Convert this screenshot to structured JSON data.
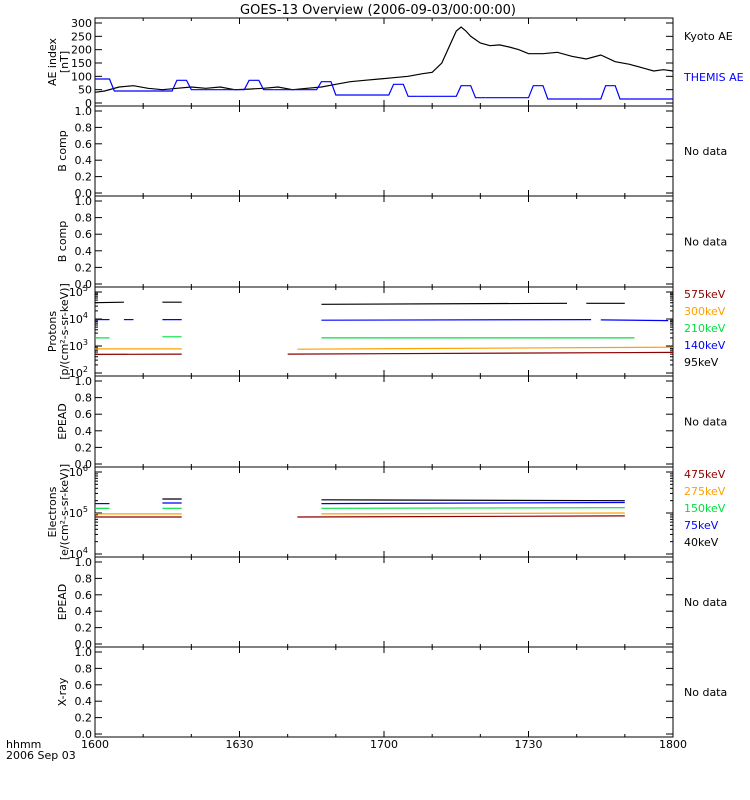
{
  "title": "GOES-13 Overview (2006-09-03/00:00:00)",
  "time_axis": {
    "corner_label_1": "hhmm",
    "corner_label_2": "2006 Sep 03",
    "ticks": [
      "1600",
      "1630",
      "1700",
      "1730",
      "1800"
    ],
    "tick_minutes": [
      0,
      30,
      60,
      90,
      120
    ]
  },
  "colors": {
    "black": "#000000",
    "blue": "#0000ff",
    "green": "#00e040",
    "orange": "#ffa000",
    "darkred": "#8b0000"
  },
  "chart_data": [
    {
      "type": "line",
      "panel": "ae",
      "ylabel_lines": [
        "AE index",
        "[nT]"
      ],
      "ylim": [
        0,
        300
      ],
      "yticks": [
        "0",
        "50",
        "100",
        "150",
        "200",
        "250",
        "300"
      ],
      "ytick_values": [
        0,
        50,
        100,
        150,
        200,
        250,
        300
      ],
      "x_unit": "minutes after 1600 UT",
      "series": [
        {
          "name": "Kyoto AE",
          "color": "#000000",
          "x": [
            0,
            2,
            5,
            8,
            11,
            14,
            17,
            20,
            23,
            26,
            29,
            32,
            35,
            38,
            41,
            44,
            47,
            50,
            53,
            56,
            59,
            62,
            65,
            68,
            70,
            72,
            74,
            75,
            76,
            77,
            78,
            80,
            82,
            84,
            86,
            88,
            90,
            93,
            96,
            99,
            102,
            105,
            108,
            111,
            114,
            116,
            118,
            120
          ],
          "y": [
            40,
            45,
            60,
            65,
            55,
            50,
            55,
            60,
            55,
            60,
            50,
            52,
            55,
            60,
            50,
            55,
            60,
            70,
            80,
            85,
            90,
            95,
            100,
            110,
            115,
            150,
            230,
            270,
            285,
            270,
            250,
            225,
            215,
            218,
            210,
            200,
            185,
            185,
            190,
            175,
            165,
            180,
            155,
            145,
            130,
            120,
            125,
            120
          ]
        },
        {
          "name": "THEMIS AE",
          "color": "#0000ff",
          "segments": [
            {
              "x": [
                0,
                3,
                4,
                7,
                8
              ],
              "y": [
                90,
                90,
                45,
                45,
                45
              ]
            },
            {
              "x": [
                8,
                16,
                17,
                19,
                20,
                22
              ],
              "y": [
                45,
                45,
                85,
                85,
                50,
                50
              ]
            },
            {
              "x": [
                22,
                31,
                32,
                34,
                35,
                37
              ],
              "y": [
                50,
                50,
                85,
                85,
                50,
                50
              ]
            },
            {
              "x": [
                37,
                46,
                47,
                49,
                50,
                52
              ],
              "y": [
                50,
                50,
                80,
                80,
                30,
                30
              ]
            },
            {
              "x": [
                52,
                61,
                62,
                64,
                65,
                67
              ],
              "y": [
                30,
                30,
                70,
                70,
                25,
                25
              ]
            },
            {
              "x": [
                67,
                75,
                76,
                78,
                79,
                81
              ],
              "y": [
                25,
                25,
                65,
                65,
                20,
                20
              ]
            },
            {
              "x": [
                81,
                90,
                91,
                93,
                94,
                96
              ],
              "y": [
                20,
                20,
                65,
                65,
                15,
                15
              ]
            },
            {
              "x": [
                96,
                105,
                106,
                108,
                109,
                112
              ],
              "y": [
                15,
                15,
                65,
                65,
                15,
                15
              ]
            },
            {
              "x": [
                112,
                120
              ],
              "y": [
                15,
                15
              ]
            }
          ]
        }
      ],
      "right_labels": [
        {
          "text": "Kyoto AE",
          "color": "#000000"
        },
        {
          "text": "THEMIS AE",
          "color": "#0000ff"
        }
      ]
    },
    {
      "type": "line",
      "panel": "empty",
      "ylabel_lines": [
        "B comp"
      ],
      "ylim": [
        0,
        1
      ],
      "yticks": [
        "0.0",
        "0.2",
        "0.4",
        "0.6",
        "0.8",
        "1.0"
      ],
      "ytick_values": [
        0,
        0.2,
        0.4,
        0.6,
        0.8,
        1.0
      ],
      "right_labels": [
        {
          "text": "No data",
          "color": "#000000"
        }
      ]
    },
    {
      "type": "line",
      "panel": "empty",
      "ylabel_lines": [
        "B comp"
      ],
      "ylim": [
        0,
        1
      ],
      "yticks": [
        "0.0",
        "0.2",
        "0.4",
        "0.6",
        "0.8",
        "1.0"
      ],
      "ytick_values": [
        0,
        0.2,
        0.4,
        0.6,
        0.8,
        1.0
      ],
      "right_labels": [
        {
          "text": "No data",
          "color": "#000000"
        }
      ]
    },
    {
      "type": "line",
      "panel": "log",
      "ylabel_lines": [
        "Protons",
        "[p/(cm²-s-sr-keV)]"
      ],
      "log_range": [
        2,
        5
      ],
      "yticks": [
        {
          "base": "10",
          "exp": "2",
          "value": 2
        },
        {
          "base": "10",
          "exp": "3",
          "value": 3
        },
        {
          "base": "10",
          "exp": "4",
          "value": 4
        },
        {
          "base": "10",
          "exp": "5",
          "value": 5
        }
      ],
      "series": [
        {
          "name": "575keV",
          "color": "#8b0000",
          "segments": [
            {
              "x": [
                0,
                18
              ],
              "y": [
                490,
                500
              ]
            },
            {
              "x": [
                40,
                120
              ],
              "y": [
                500,
                580
              ]
            }
          ]
        },
        {
          "name": "300keV",
          "color": "#ffa000",
          "segments": [
            {
              "x": [
                0,
                18
              ],
              "y": [
                780,
                780
              ]
            },
            {
              "x": [
                42,
                120
              ],
              "y": [
                760,
                900
              ]
            }
          ]
        },
        {
          "name": "210keV",
          "color": "#00e040",
          "segments": [
            {
              "x": [
                0,
                3
              ],
              "y": [
                2000,
                2000
              ]
            },
            {
              "x": [
                14,
                18
              ],
              "y": [
                2200,
                2200
              ]
            },
            {
              "x": [
                47,
                112
              ],
              "y": [
                2000,
                2000
              ]
            }
          ]
        },
        {
          "name": "140keV",
          "color": "#0000ff",
          "segments": [
            {
              "x": [
                0,
                3
              ],
              "y": [
                9500,
                9500
              ]
            },
            {
              "x": [
                6,
                8
              ],
              "y": [
                9500,
                9500
              ]
            },
            {
              "x": [
                14,
                18
              ],
              "y": [
                9500,
                9500
              ]
            },
            {
              "x": [
                47,
                103
              ],
              "y": [
                9000,
                9500
              ]
            },
            {
              "x": [
                105,
                119
              ],
              "y": [
                9300,
                8700
              ]
            }
          ]
        },
        {
          "name": "95keV",
          "color": "#000000",
          "segments": [
            {
              "x": [
                0,
                6
              ],
              "y": [
                40000,
                42000
              ]
            },
            {
              "x": [
                14,
                18
              ],
              "y": [
                42000,
                42000
              ]
            },
            {
              "x": [
                47,
                98
              ],
              "y": [
                35000,
                38000
              ]
            },
            {
              "x": [
                102,
                110
              ],
              "y": [
                38000,
                38000
              ]
            }
          ]
        }
      ],
      "right_labels": [
        {
          "text": "575keV",
          "color": "#8b0000"
        },
        {
          "text": "300keV",
          "color": "#ffa000"
        },
        {
          "text": "210keV",
          "color": "#00e040"
        },
        {
          "text": "140keV",
          "color": "#0000ff"
        },
        {
          "text": "95keV",
          "color": "#000000"
        }
      ]
    },
    {
      "type": "line",
      "panel": "empty",
      "ylabel_lines": [
        "EPEAD"
      ],
      "ylim": [
        0,
        1
      ],
      "yticks": [
        "0.0",
        "0.2",
        "0.4",
        "0.6",
        "0.8",
        "1.0"
      ],
      "ytick_values": [
        0,
        0.2,
        0.4,
        0.6,
        0.8,
        1.0
      ],
      "right_labels": [
        {
          "text": "No data",
          "color": "#000000"
        }
      ]
    },
    {
      "type": "line",
      "panel": "log",
      "ylabel_lines": [
        "Electrons",
        "[e/(cm²-s-sr-keV)]"
      ],
      "log_range": [
        4,
        6
      ],
      "yticks": [
        {
          "base": "10",
          "exp": "4",
          "value": 4
        },
        {
          "base": "10",
          "exp": "5",
          "value": 5
        },
        {
          "base": "10",
          "exp": "6",
          "value": 6
        }
      ],
      "series": [
        {
          "name": "475keV",
          "color": "#8b0000",
          "segments": [
            {
              "x": [
                0,
                18
              ],
              "y": [
                80000,
                80000
              ]
            },
            {
              "x": [
                42,
                110
              ],
              "y": [
                80000,
                85000
              ]
            }
          ]
        },
        {
          "name": "275keV",
          "color": "#ffa000",
          "segments": [
            {
              "x": [
                0,
                18
              ],
              "y": [
                95000,
                95000
              ]
            },
            {
              "x": [
                47,
                110
              ],
              "y": [
                95000,
                100000
              ]
            }
          ]
        },
        {
          "name": "150keV",
          "color": "#00e040",
          "segments": [
            {
              "x": [
                0,
                3
              ],
              "y": [
                130000,
                130000
              ]
            },
            {
              "x": [
                14,
                18
              ],
              "y": [
                130000,
                130000
              ]
            },
            {
              "x": [
                47,
                110
              ],
              "y": [
                130000,
                135000
              ]
            }
          ]
        },
        {
          "name": "75keV",
          "color": "#0000ff",
          "segments": [
            {
              "x": [
                0,
                3
              ],
              "y": [
                170000,
                170000
              ]
            },
            {
              "x": [
                14,
                18
              ],
              "y": [
                175000,
                175000
              ]
            },
            {
              "x": [
                47,
                110
              ],
              "y": [
                170000,
                180000
              ]
            }
          ]
        },
        {
          "name": "40keV",
          "color": "#000000",
          "segments": [
            {
              "x": [
                14,
                18
              ],
              "y": [
                220000,
                220000
              ]
            },
            {
              "x": [
                47,
                110
              ],
              "y": [
                210000,
                200000
              ]
            }
          ]
        }
      ],
      "right_labels": [
        {
          "text": "475keV",
          "color": "#8b0000"
        },
        {
          "text": "275keV",
          "color": "#ffa000"
        },
        {
          "text": "150keV",
          "color": "#00e040"
        },
        {
          "text": "75keV",
          "color": "#0000ff"
        },
        {
          "text": "40keV",
          "color": "#000000"
        }
      ]
    },
    {
      "type": "line",
      "panel": "empty",
      "ylabel_lines": [
        "EPEAD"
      ],
      "ylim": [
        0,
        1
      ],
      "yticks": [
        "0.0",
        "0.2",
        "0.4",
        "0.6",
        "0.8",
        "1.0"
      ],
      "ytick_values": [
        0,
        0.2,
        0.4,
        0.6,
        0.8,
        1.0
      ],
      "right_labels": [
        {
          "text": "No data",
          "color": "#000000"
        }
      ]
    },
    {
      "type": "line",
      "panel": "empty",
      "ylabel_lines": [
        "X-ray"
      ],
      "ylim": [
        0,
        1
      ],
      "yticks": [
        "0.0",
        "0.2",
        "0.4",
        "0.6",
        "0.8",
        "1.0"
      ],
      "ytick_values": [
        0,
        0.2,
        0.4,
        0.6,
        0.8,
        1.0
      ],
      "right_labels": [
        {
          "text": "No data",
          "color": "#000000"
        }
      ]
    }
  ]
}
